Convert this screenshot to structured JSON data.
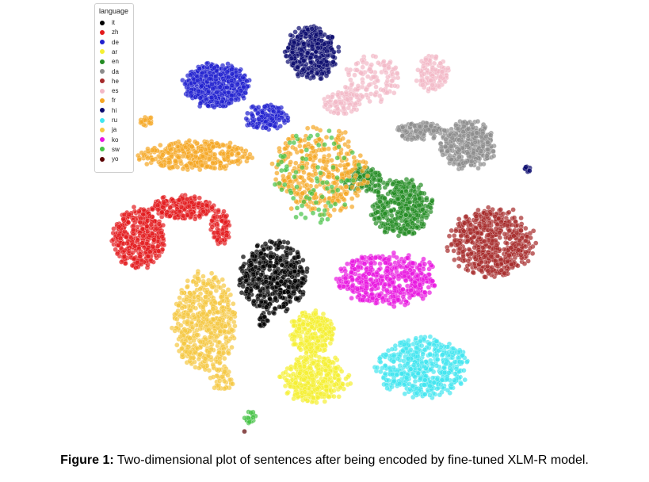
{
  "chart_data": {
    "type": "scatter",
    "title": "",
    "xlabel": "",
    "ylabel": "",
    "grid": false,
    "axes_visible": false,
    "marker": "circle",
    "marker_alpha": 0.7,
    "legend": {
      "title": "language",
      "position": "top-left",
      "entries": [
        "it",
        "zh",
        "de",
        "ar",
        "en",
        "da",
        "he",
        "es",
        "fr",
        "hi",
        "ru",
        "ja",
        "ko",
        "sw",
        "yo"
      ]
    },
    "series": [
      {
        "name": "it",
        "color": "#000000",
        "clusters": [
          {
            "cx": 345,
            "cy": 350,
            "rx": 42,
            "ry": 45,
            "n": 480
          },
          {
            "cx": 332,
            "cy": 405,
            "rx": 6,
            "ry": 8,
            "n": 25
          }
        ]
      },
      {
        "name": "zh",
        "color": "#e31a1c",
        "clusters": [
          {
            "cx": 175,
            "cy": 300,
            "rx": 32,
            "ry": 38,
            "n": 380
          },
          {
            "cx": 230,
            "cy": 262,
            "rx": 40,
            "ry": 15,
            "n": 220
          },
          {
            "cx": 278,
            "cy": 288,
            "rx": 12,
            "ry": 22,
            "n": 90
          }
        ]
      },
      {
        "name": "de",
        "color": "#1f1fcf",
        "clusters": [
          {
            "cx": 272,
            "cy": 108,
            "rx": 42,
            "ry": 27,
            "n": 520
          },
          {
            "cx": 335,
            "cy": 148,
            "rx": 28,
            "ry": 16,
            "n": 150
          }
        ]
      },
      {
        "name": "ar",
        "color": "#f5f032",
        "clusters": [
          {
            "cx": 393,
            "cy": 420,
            "rx": 28,
            "ry": 27,
            "n": 260
          },
          {
            "cx": 398,
            "cy": 478,
            "rx": 42,
            "ry": 30,
            "n": 360
          }
        ]
      },
      {
        "name": "en",
        "color": "#238b23",
        "clusters": [
          {
            "cx": 507,
            "cy": 262,
            "rx": 38,
            "ry": 35,
            "n": 400
          },
          {
            "cx": 458,
            "cy": 226,
            "rx": 25,
            "ry": 16,
            "n": 120
          }
        ]
      },
      {
        "name": "da",
        "color": "#8c8c8c",
        "clusters": [
          {
            "cx": 590,
            "cy": 183,
            "rx": 35,
            "ry": 30,
            "n": 340
          },
          {
            "cx": 530,
            "cy": 165,
            "rx": 30,
            "ry": 12,
            "n": 130
          }
        ]
      },
      {
        "name": "he",
        "color": "#a52a2a",
        "clusters": [
          {
            "cx": 620,
            "cy": 305,
            "rx": 53,
            "ry": 42,
            "n": 560
          }
        ]
      },
      {
        "name": "es",
        "color": "#f2b8c6",
        "clusters": [
          {
            "cx": 545,
            "cy": 93,
            "rx": 20,
            "ry": 22,
            "n": 110
          },
          {
            "cx": 470,
            "cy": 100,
            "rx": 35,
            "ry": 30,
            "n": 120
          },
          {
            "cx": 430,
            "cy": 130,
            "rx": 25,
            "ry": 15,
            "n": 80
          }
        ]
      },
      {
        "name": "fr",
        "color": "#f5a623",
        "clusters": [
          {
            "cx": 245,
            "cy": 196,
            "rx": 70,
            "ry": 18,
            "n": 330
          },
          {
            "cx": 185,
            "cy": 152,
            "rx": 8,
            "ry": 7,
            "n": 20
          },
          {
            "cx": 405,
            "cy": 215,
            "rx": 60,
            "ry": 55,
            "n": 360
          }
        ]
      },
      {
        "name": "hi",
        "color": "#0a0a6e",
        "clusters": [
          {
            "cx": 393,
            "cy": 66,
            "rx": 32,
            "ry": 34,
            "n": 380
          },
          {
            "cx": 665,
            "cy": 213,
            "rx": 5,
            "ry": 5,
            "n": 10
          }
        ]
      },
      {
        "name": "ru",
        "color": "#40e6f0",
        "clusters": [
          {
            "cx": 532,
            "cy": 462,
            "rx": 58,
            "ry": 38,
            "n": 480
          }
        ]
      },
      {
        "name": "ja",
        "color": "#f5c842",
        "clusters": [
          {
            "cx": 258,
            "cy": 405,
            "rx": 38,
            "ry": 62,
            "n": 520
          },
          {
            "cx": 280,
            "cy": 478,
            "rx": 15,
            "ry": 15,
            "n": 40
          }
        ]
      },
      {
        "name": "ko",
        "color": "#e815e0",
        "clusters": [
          {
            "cx": 490,
            "cy": 352,
            "rx": 62,
            "ry": 33,
            "n": 480
          }
        ]
      },
      {
        "name": "sw",
        "color": "#45c245",
        "clusters": [
          {
            "cx": 316,
            "cy": 527,
            "rx": 8,
            "ry": 8,
            "n": 22
          },
          {
            "cx": 400,
            "cy": 220,
            "rx": 55,
            "ry": 60,
            "n": 80
          }
        ]
      },
      {
        "name": "yo",
        "color": "#5a0000",
        "clusters": [
          {
            "cx": 310,
            "cy": 545,
            "rx": 2,
            "ry": 2,
            "n": 1
          }
        ]
      }
    ]
  },
  "caption": {
    "label": "Figure 1:",
    "text": " Two-dimensional plot of sentences after being encoded by fine-tuned XLM-R model."
  }
}
